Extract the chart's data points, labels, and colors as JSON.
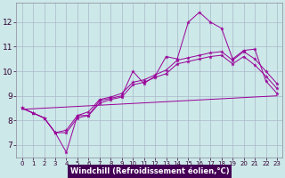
{
  "xlabel": "Windchill (Refroidissement éolien,°C)",
  "bg_color": "#cce8e8",
  "grid_color": "#aab8cc",
  "line_color": "#990099",
  "xlabel_bg": "#440055",
  "xlabel_fg": "#ffffff",
  "xlim": [
    -0.5,
    23.5
  ],
  "ylim": [
    6.5,
    12.8
  ],
  "xticks": [
    0,
    1,
    2,
    3,
    4,
    5,
    6,
    7,
    8,
    9,
    10,
    11,
    12,
    13,
    14,
    15,
    16,
    17,
    18,
    19,
    20,
    21,
    22,
    23
  ],
  "yticks": [
    7,
    8,
    9,
    10,
    11,
    12
  ],
  "series": [
    {
      "x": [
        0,
        1,
        2,
        3,
        4,
        5,
        6,
        7,
        8,
        9,
        10,
        11,
        12,
        13,
        14,
        15,
        16,
        17,
        18,
        19,
        20,
        21,
        22,
        23
      ],
      "y": [
        8.5,
        8.3,
        8.1,
        7.5,
        6.7,
        8.2,
        8.2,
        8.8,
        8.9,
        9.0,
        10.0,
        9.5,
        9.8,
        10.6,
        10.5,
        12.0,
        12.4,
        12.0,
        11.75,
        10.5,
        10.85,
        10.9,
        9.6,
        9.1
      ]
    },
    {
      "x": [
        0,
        1,
        2,
        3,
        4,
        5,
        6,
        7,
        8,
        9,
        10,
        11,
        12,
        13,
        14,
        15,
        16,
        17,
        18,
        19,
        20,
        21,
        22,
        23
      ],
      "y": [
        8.5,
        8.3,
        8.1,
        7.5,
        7.6,
        8.2,
        8.35,
        8.85,
        8.95,
        9.1,
        9.55,
        9.65,
        9.85,
        10.05,
        10.45,
        10.55,
        10.65,
        10.75,
        10.8,
        10.45,
        10.8,
        10.5,
        10.0,
        9.5
      ]
    },
    {
      "x": [
        0,
        1,
        2,
        3,
        4,
        5,
        6,
        7,
        8,
        9,
        10,
        11,
        12,
        13,
        14,
        15,
        16,
        17,
        18,
        19,
        20,
        21,
        22,
        23
      ],
      "y": [
        8.5,
        8.3,
        8.1,
        7.5,
        7.5,
        8.1,
        8.2,
        8.7,
        8.85,
        8.95,
        9.45,
        9.55,
        9.75,
        9.9,
        10.3,
        10.4,
        10.5,
        10.6,
        10.65,
        10.3,
        10.6,
        10.25,
        9.8,
        9.3
      ]
    },
    {
      "x": [
        0,
        23
      ],
      "y": [
        8.45,
        9.0
      ]
    }
  ]
}
